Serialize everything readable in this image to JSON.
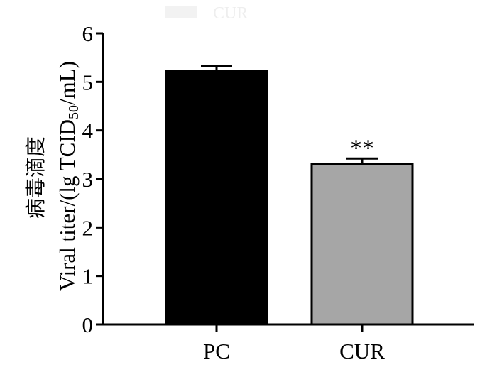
{
  "chart_data": {
    "type": "bar",
    "categories": [
      "PC",
      "CUR"
    ],
    "values": [
      5.22,
      3.3
    ],
    "errors": [
      0.1,
      0.12
    ],
    "colors": [
      "#000000",
      "#a6a6a6"
    ],
    "bar_edge_color": "#000000",
    "ylabel": {
      "chinese": "病毒滴度",
      "prefix": "Viral titer/(lg TCID",
      "subscript": "50",
      "suffix": "/mL)"
    },
    "ylim": [
      0,
      6
    ],
    "yticks": [
      "0",
      "1",
      "2",
      "3",
      "4",
      "5",
      "6"
    ],
    "annotations": [
      {
        "category": "CUR",
        "text": "**"
      }
    ],
    "legend": {
      "label": "CUR",
      "color": "#eeeeee",
      "placement": "top-center"
    },
    "grid": false
  }
}
